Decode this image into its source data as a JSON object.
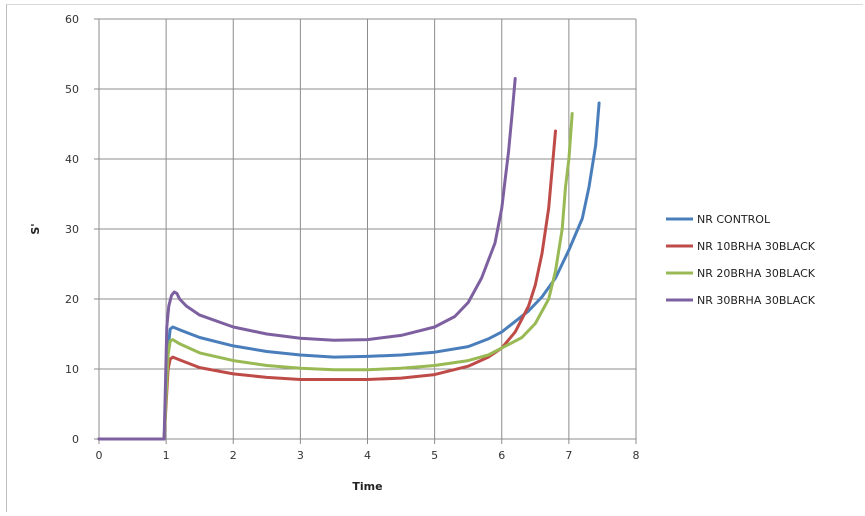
{
  "chart_data": {
    "type": "line",
    "title": "",
    "xlabel": "Time",
    "ylabel": "S'",
    "xlim": [
      0,
      8
    ],
    "ylim": [
      0,
      60
    ],
    "xticks": [
      "0",
      "1",
      "2",
      "3",
      "4",
      "5",
      "6",
      "7",
      "8"
    ],
    "yticks": [
      "0",
      "10",
      "20",
      "30",
      "40",
      "50",
      "60"
    ],
    "grid": true,
    "legend_position": "right",
    "series": [
      {
        "name": "NR CONTROL",
        "color": "#4a7ebb",
        "x": [
          0,
          0.97,
          1.0,
          1.03,
          1.06,
          1.1,
          1.2,
          1.5,
          2.0,
          2.5,
          3.0,
          3.5,
          4.0,
          4.5,
          5.0,
          5.5,
          5.8,
          6.0,
          6.2,
          6.4,
          6.6,
          6.8,
          7.0,
          7.2,
          7.3,
          7.4,
          7.45
        ],
        "y": [
          0,
          0,
          6,
          13,
          15.7,
          16,
          15.6,
          14.5,
          13.3,
          12.5,
          12,
          11.7,
          11.8,
          12,
          12.4,
          13.2,
          14.3,
          15.3,
          16.8,
          18.3,
          20.3,
          23,
          27,
          31.5,
          36,
          42,
          48
        ]
      },
      {
        "name": "NR 10BRHA 30BLACK",
        "color": "#be4b48",
        "x": [
          0,
          0.97,
          1.0,
          1.03,
          1.06,
          1.1,
          1.2,
          1.5,
          2.0,
          2.5,
          3.0,
          3.5,
          4.0,
          4.5,
          5.0,
          5.5,
          5.8,
          6.0,
          6.2,
          6.4,
          6.5,
          6.6,
          6.7,
          6.8
        ],
        "y": [
          0,
          0,
          5,
          10,
          11.4,
          11.7,
          11.3,
          10.2,
          9.3,
          8.8,
          8.5,
          8.5,
          8.5,
          8.7,
          9.2,
          10.4,
          11.7,
          13,
          15.3,
          19,
          22,
          26.5,
          33,
          44
        ]
      },
      {
        "name": "NR 20BRHA 30BLACK",
        "color": "#98b954",
        "x": [
          0,
          0.97,
          1.0,
          1.03,
          1.06,
          1.1,
          1.2,
          1.5,
          2.0,
          2.5,
          3.0,
          3.5,
          4.0,
          4.5,
          5.0,
          5.5,
          5.8,
          6.0,
          6.3,
          6.5,
          6.7,
          6.8,
          6.9,
          6.95,
          7.0,
          7.05
        ],
        "y": [
          0,
          0,
          6,
          12,
          14,
          14.2,
          13.6,
          12.3,
          11.2,
          10.5,
          10.1,
          9.9,
          9.9,
          10.1,
          10.5,
          11.2,
          12,
          13,
          14.5,
          16.5,
          20,
          24,
          30,
          36,
          40,
          46.5
        ]
      },
      {
        "name": "NR 30BRHA 30BLACK",
        "color": "#7d60a0",
        "x": [
          0,
          0.97,
          0.99,
          1.01,
          1.04,
          1.08,
          1.12,
          1.16,
          1.2,
          1.3,
          1.5,
          2.0,
          2.5,
          3.0,
          3.5,
          4.0,
          4.5,
          5.0,
          5.3,
          5.5,
          5.7,
          5.9,
          6.0,
          6.05,
          6.1,
          6.15,
          6.2
        ],
        "y": [
          0,
          0,
          8,
          16,
          19,
          20.5,
          21,
          20.8,
          20,
          19,
          17.7,
          16,
          15,
          14.4,
          14.1,
          14.2,
          14.8,
          16,
          17.5,
          19.5,
          23,
          28,
          33,
          37,
          41,
          46,
          51.5
        ]
      }
    ]
  }
}
